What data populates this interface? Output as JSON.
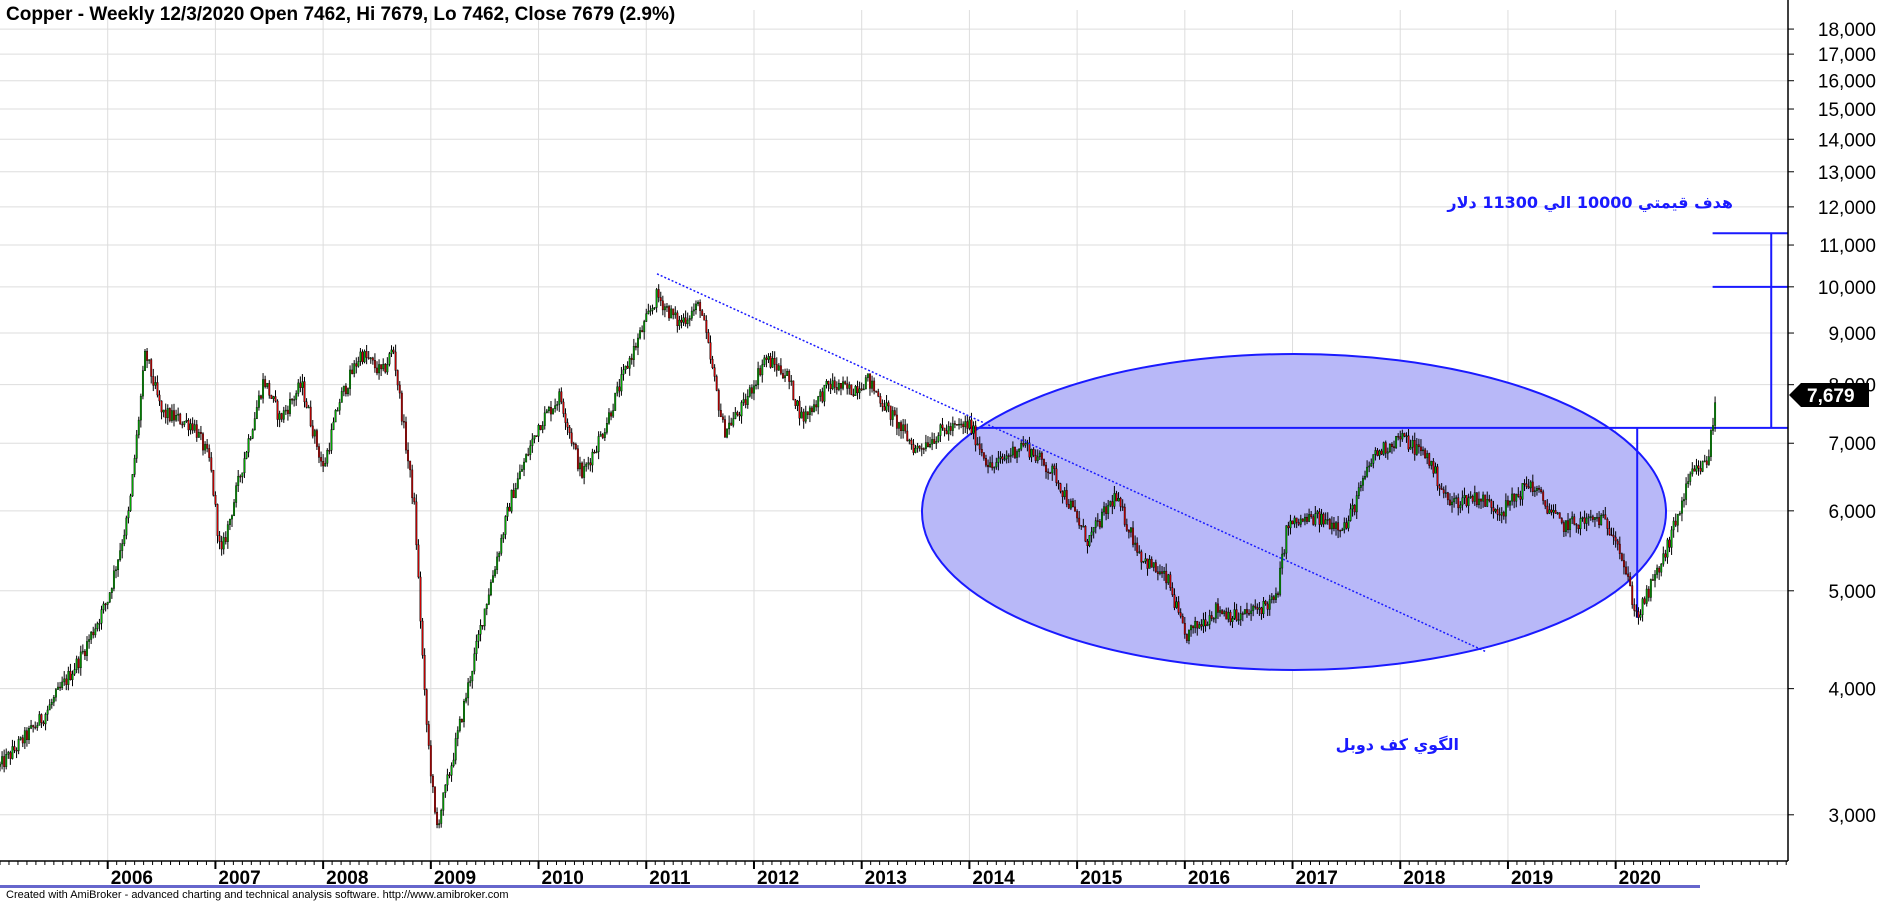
{
  "title": "Copper - Weekly 12/3/2020 Open 7462, Hi 7679, Lo 7462, Close 7679 (2.9%)",
  "footer": "Created with AmiBroker - advanced charting and technical analysis software. http://www.amibroker.com",
  "last_price_label": "7,679",
  "annotations": {
    "target": "هدف قيمتي 10000 الي 11300 دلار",
    "pattern": "الگوي کف دوبل"
  },
  "colors": {
    "up_candle": "#00aa00",
    "down_candle": "#cc0000",
    "annotation": "#1a1aff",
    "ellipse_fill": "#b8b8f8",
    "grid": "#dddddd",
    "last_price_bg": "#000000"
  },
  "chart_data": {
    "type": "candlestick",
    "title": "Copper - Weekly 12/3/2020 Open 7462, Hi 7679, Lo 7462, Close 7679 (2.9%)",
    "x_labels": [
      "2006",
      "2007",
      "2008",
      "2009",
      "2010",
      "2011",
      "2012",
      "2013",
      "2014",
      "2015",
      "2016",
      "2017",
      "2018",
      "2019",
      "2020"
    ],
    "y_ticks": [
      "3,000",
      "4,000",
      "5,000",
      "6,000",
      "7,000",
      "8,000",
      "9,000",
      "10,000",
      "11,000",
      "12,000",
      "13,000",
      "14,000",
      "15,000",
      "16,000",
      "17,000",
      "18,000"
    ],
    "y_scale": "log",
    "ylim": [
      2700,
      18800
    ],
    "xlim": [
      2005.0,
      2021.6
    ],
    "grid": true,
    "last_close": 7679,
    "anchors": [
      {
        "t": 2005.0,
        "v": 3350
      },
      {
        "t": 2005.4,
        "v": 3750
      },
      {
        "t": 2005.75,
        "v": 4300
      },
      {
        "t": 2006.0,
        "v": 4900
      },
      {
        "t": 2006.2,
        "v": 6000
      },
      {
        "t": 2006.35,
        "v": 8600
      },
      {
        "t": 2006.5,
        "v": 7500
      },
      {
        "t": 2006.8,
        "v": 7300
      },
      {
        "t": 2006.95,
        "v": 6700
      },
      {
        "t": 2007.05,
        "v": 5400
      },
      {
        "t": 2007.3,
        "v": 7000
      },
      {
        "t": 2007.45,
        "v": 8100
      },
      {
        "t": 2007.6,
        "v": 7400
      },
      {
        "t": 2007.8,
        "v": 8000
      },
      {
        "t": 2008.0,
        "v": 6600
      },
      {
        "t": 2008.15,
        "v": 7700
      },
      {
        "t": 2008.35,
        "v": 8600
      },
      {
        "t": 2008.55,
        "v": 8200
      },
      {
        "t": 2008.65,
        "v": 8700
      },
      {
        "t": 2008.85,
        "v": 6000
      },
      {
        "t": 2008.95,
        "v": 3800
      },
      {
        "t": 2009.05,
        "v": 2900
      },
      {
        "t": 2009.2,
        "v": 3400
      },
      {
        "t": 2009.5,
        "v": 4800
      },
      {
        "t": 2009.75,
        "v": 6200
      },
      {
        "t": 2010.0,
        "v": 7300
      },
      {
        "t": 2010.2,
        "v": 7800
      },
      {
        "t": 2010.4,
        "v": 6500
      },
      {
        "t": 2010.6,
        "v": 7200
      },
      {
        "t": 2010.85,
        "v": 8500
      },
      {
        "t": 2011.1,
        "v": 9800
      },
      {
        "t": 2011.3,
        "v": 9200
      },
      {
        "t": 2011.5,
        "v": 9600
      },
      {
        "t": 2011.72,
        "v": 7200
      },
      {
        "t": 2011.9,
        "v": 7600
      },
      {
        "t": 2012.1,
        "v": 8500
      },
      {
        "t": 2012.3,
        "v": 8200
      },
      {
        "t": 2012.45,
        "v": 7400
      },
      {
        "t": 2012.7,
        "v": 8000
      },
      {
        "t": 2012.9,
        "v": 7900
      },
      {
        "t": 2013.05,
        "v": 8100
      },
      {
        "t": 2013.3,
        "v": 7400
      },
      {
        "t": 2013.5,
        "v": 6900
      },
      {
        "t": 2013.75,
        "v": 7200
      },
      {
        "t": 2014.0,
        "v": 7300
      },
      {
        "t": 2014.2,
        "v": 6600
      },
      {
        "t": 2014.5,
        "v": 7000
      },
      {
        "t": 2014.8,
        "v": 6500
      },
      {
        "t": 2015.1,
        "v": 5600
      },
      {
        "t": 2015.35,
        "v": 6200
      },
      {
        "t": 2015.6,
        "v": 5400
      },
      {
        "t": 2015.85,
        "v": 5100
      },
      {
        "t": 2016.0,
        "v": 4500
      },
      {
        "t": 2016.3,
        "v": 4800
      },
      {
        "t": 2016.5,
        "v": 4700
      },
      {
        "t": 2016.85,
        "v": 4900
      },
      {
        "t": 2016.95,
        "v": 5800
      },
      {
        "t": 2017.2,
        "v": 5900
      },
      {
        "t": 2017.5,
        "v": 5800
      },
      {
        "t": 2017.75,
        "v": 6800
      },
      {
        "t": 2018.0,
        "v": 7100
      },
      {
        "t": 2018.25,
        "v": 6800
      },
      {
        "t": 2018.45,
        "v": 6100
      },
      {
        "t": 2018.7,
        "v": 6200
      },
      {
        "t": 2018.95,
        "v": 6000
      },
      {
        "t": 2019.2,
        "v": 6400
      },
      {
        "t": 2019.5,
        "v": 5800
      },
      {
        "t": 2019.85,
        "v": 5900
      },
      {
        "t": 2020.0,
        "v": 5700
      },
      {
        "t": 2020.2,
        "v": 4700
      },
      {
        "t": 2020.45,
        "v": 5400
      },
      {
        "t": 2020.7,
        "v": 6500
      },
      {
        "t": 2020.85,
        "v": 6700
      },
      {
        "t": 2020.93,
        "v": 7679
      }
    ]
  }
}
